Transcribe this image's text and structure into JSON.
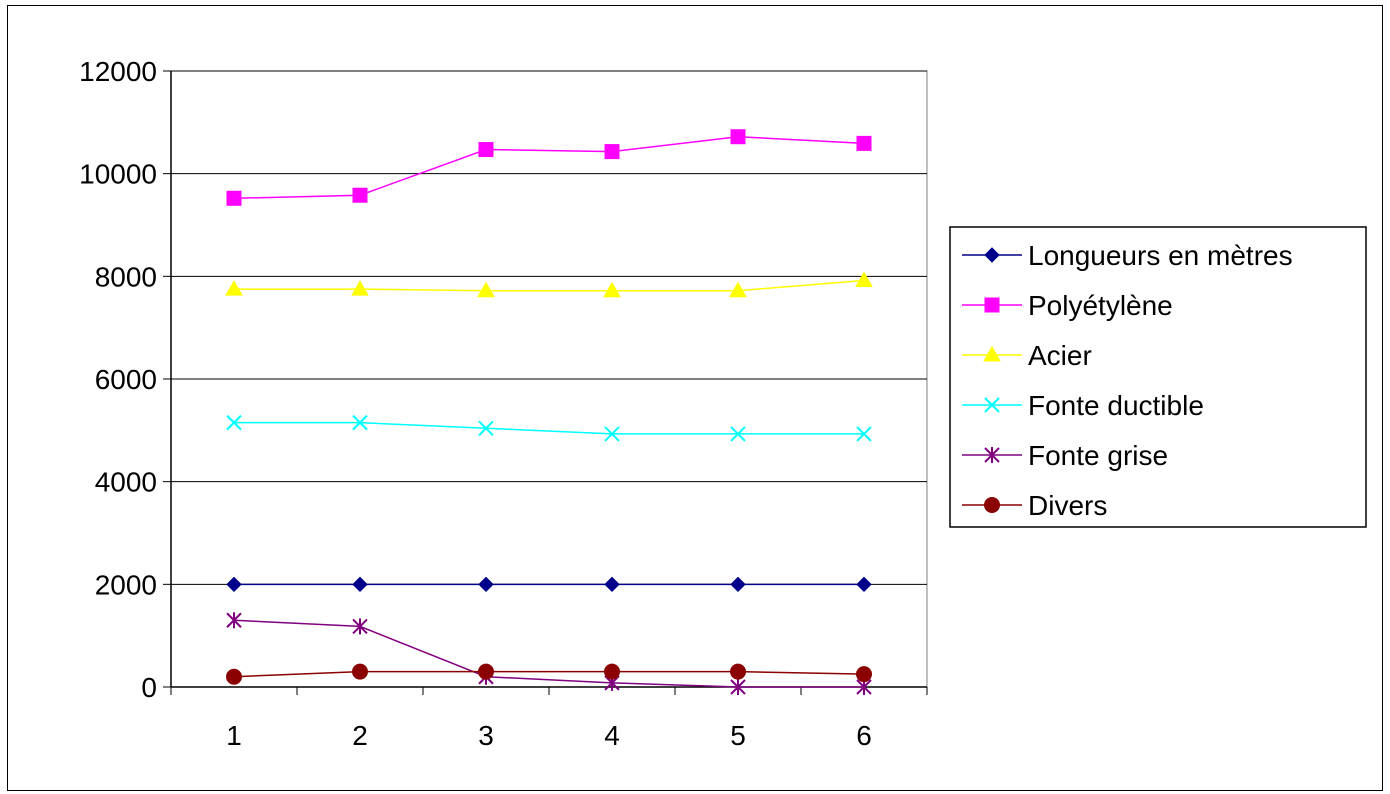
{
  "chart_data": {
    "type": "line",
    "x": [
      1,
      2,
      3,
      4,
      5,
      6
    ],
    "x_ticks": [
      "1",
      "2",
      "3",
      "4",
      "5",
      "6"
    ],
    "ylim": [
      0,
      12000
    ],
    "y_ticks": [
      "0",
      "2000",
      "4000",
      "6000",
      "8000",
      "10000",
      "12000"
    ],
    "grid": "horizontal",
    "legend_position": "right",
    "series": [
      {
        "name": "Longueurs en mètres",
        "marker": "diamond",
        "color": "#00008B",
        "values": [
          2000,
          2000,
          2000,
          2000,
          2000,
          2000
        ]
      },
      {
        "name": "Polyétylène",
        "marker": "square",
        "color": "#FF00FF",
        "values": [
          9520,
          9580,
          10470,
          10430,
          10720,
          10590
        ]
      },
      {
        "name": "Acier",
        "marker": "triangle",
        "color": "#FFFF00",
        "values": [
          7750,
          7750,
          7720,
          7720,
          7720,
          7920
        ]
      },
      {
        "name": "Fonte ductible",
        "marker": "x",
        "color": "#00FFFF",
        "values": [
          5150,
          5150,
          5040,
          4930,
          4930,
          4930
        ]
      },
      {
        "name": "Fonte grise",
        "marker": "star",
        "color": "#800080",
        "values": [
          1300,
          1180,
          200,
          80,
          0,
          0
        ]
      },
      {
        "name": "Divers",
        "marker": "circle",
        "color": "#8B0000",
        "values": [
          200,
          300,
          300,
          300,
          300,
          250
        ]
      }
    ]
  }
}
